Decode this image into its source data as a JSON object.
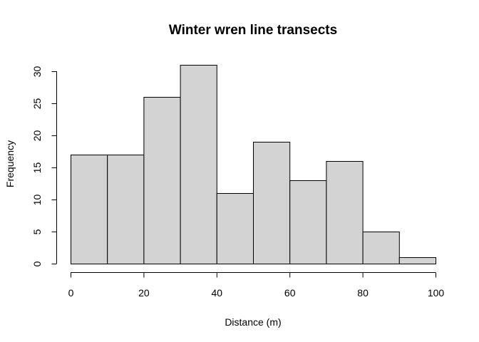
{
  "chart_data": {
    "type": "bar",
    "title": "Winter wren line transects",
    "xlabel": "Distance (m)",
    "ylabel": "Frequency",
    "bin_edges": [
      0,
      10,
      20,
      30,
      40,
      50,
      60,
      70,
      80,
      90,
      100
    ],
    "values": [
      17,
      17,
      26,
      31,
      11,
      19,
      13,
      16,
      5,
      1
    ],
    "xlim": [
      0,
      100
    ],
    "ylim": [
      0,
      31
    ],
    "x_ticks": [
      0,
      20,
      40,
      60,
      80,
      100
    ],
    "y_ticks": [
      0,
      5,
      10,
      15,
      20,
      25,
      30
    ],
    "bar_fill": "#d3d3d3",
    "bar_stroke": "#000000",
    "grid": false
  }
}
